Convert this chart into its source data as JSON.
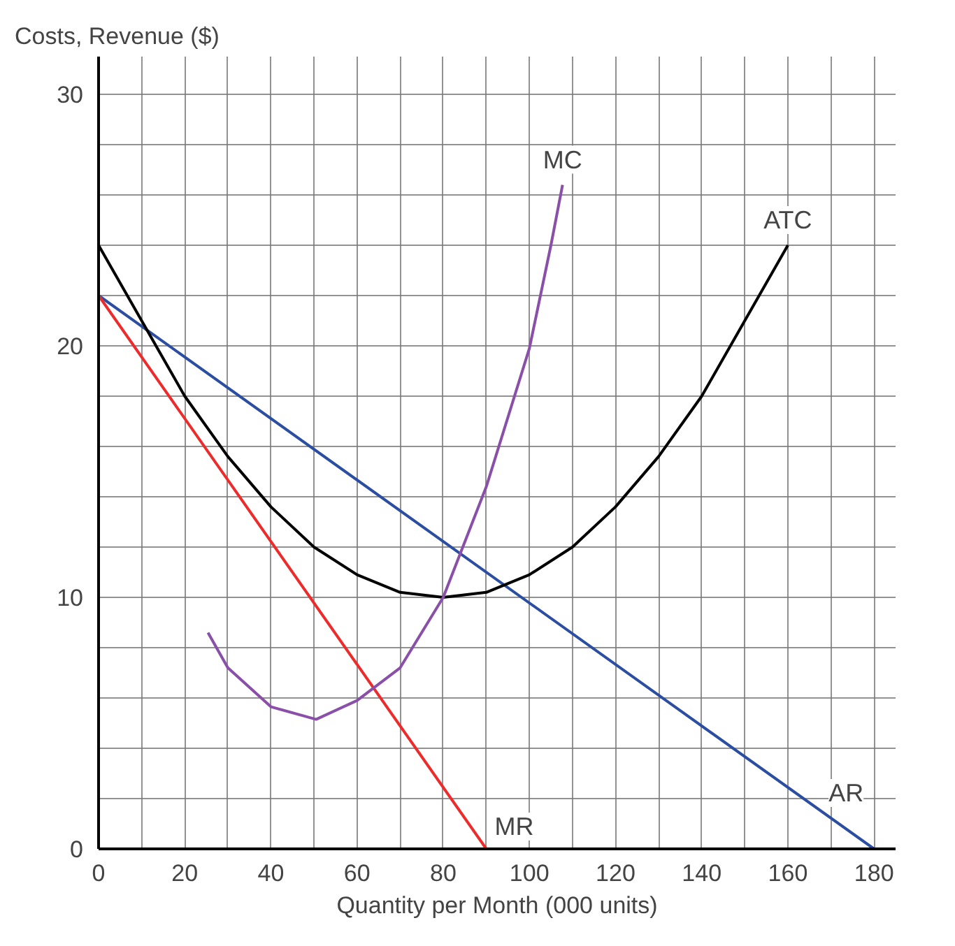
{
  "chart_data": {
    "type": "line",
    "xlabel": "Quantity per Month (000 units)",
    "ylabel": "Costs, Revenue ($)",
    "xlim": [
      0,
      185
    ],
    "ylim": [
      0,
      31.5
    ],
    "xticks": [
      0,
      {
        "value": 10,
        "label": null
      },
      20,
      {
        "value": 30,
        "label": null
      },
      40,
      {
        "value": 50,
        "label": null
      },
      60,
      {
        "value": 70,
        "label": null
      },
      80,
      {
        "value": 90,
        "label": null
      },
      100,
      {
        "value": 110,
        "label": null
      },
      120,
      {
        "value": 130,
        "label": null
      },
      140,
      {
        "value": 150,
        "label": null
      },
      160,
      {
        "value": 170,
        "label": null
      },
      180
    ],
    "yticks": [
      0,
      {
        "value": 2,
        "label": null
      },
      {
        "value": 4,
        "label": null
      },
      {
        "value": 6,
        "label": null
      },
      {
        "value": 8,
        "label": null
      },
      10,
      {
        "value": 12,
        "label": null
      },
      {
        "value": 14,
        "label": null
      },
      {
        "value": 16,
        "label": null
      },
      {
        "value": 18,
        "label": null
      },
      20,
      {
        "value": 22,
        "label": null
      },
      {
        "value": 24,
        "label": null
      },
      {
        "value": 26,
        "label": null
      },
      {
        "value": 28,
        "label": null
      },
      30
    ],
    "grid": true,
    "marker": "none",
    "line_style": "solid",
    "series": [
      {
        "name": "AR",
        "color": "#2b4ea2",
        "x": [
          0,
          180
        ],
        "values": [
          22,
          0
        ]
      },
      {
        "name": "MR",
        "color": "#ee2b2b",
        "x": [
          0,
          90
        ],
        "values": [
          22,
          0
        ]
      },
      {
        "name": "ATC",
        "color": "#000000",
        "x": [
          0,
          10,
          20,
          30,
          40,
          50,
          60,
          70,
          80,
          90,
          100,
          110,
          120,
          130,
          140,
          150,
          160
        ],
        "values": [
          24,
          21,
          18,
          15.6,
          13.6,
          12,
          10.9,
          10.2,
          10,
          10.2,
          10.9,
          12,
          13.6,
          15.6,
          18,
          21,
          24
        ]
      },
      {
        "name": "MC",
        "color": "#8a4fa8",
        "x": [
          25.4,
          30,
          40,
          50.5,
          60,
          70,
          80,
          90,
          100,
          105,
          107.7
        ],
        "values": [
          8.6,
          7.2,
          5.65,
          5.15,
          5.9,
          7.2,
          10,
          14.4,
          19.9,
          24,
          26.4
        ]
      }
    ]
  }
}
